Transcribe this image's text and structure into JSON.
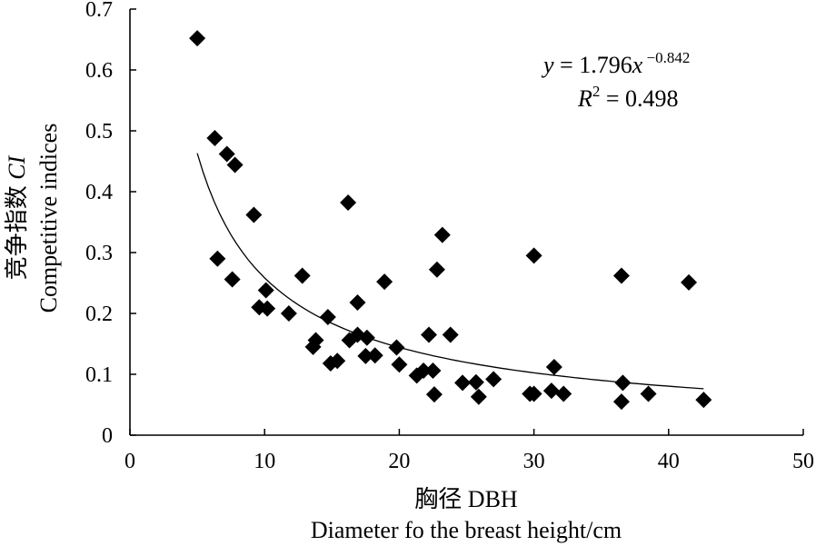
{
  "chart_data": {
    "type": "scatter",
    "title": "",
    "xlabel_line1": "胸径 DBH",
    "xlabel_line2": "Diameter fo the breast height/cm",
    "ylabel_line1_prefix": "竞争指数 ",
    "ylabel_line1_var": "CI",
    "ylabel_line2": "Competitive indices",
    "xlim": [
      0,
      50
    ],
    "ylim": [
      0,
      0.7
    ],
    "xticks": [
      "0",
      "10",
      "20",
      "30",
      "40",
      "50"
    ],
    "yticks": [
      "0",
      "0.1",
      "0.2",
      "0.3",
      "0.4",
      "0.5",
      "0.6",
      "0.7"
    ],
    "grid": false,
    "series": [
      {
        "marker": "diamond",
        "color": "#000000",
        "points": [
          [
            5.0,
            0.652
          ],
          [
            6.3,
            0.488
          ],
          [
            7.2,
            0.462
          ],
          [
            7.8,
            0.444
          ],
          [
            9.2,
            0.362
          ],
          [
            6.5,
            0.29
          ],
          [
            7.6,
            0.256
          ],
          [
            9.6,
            0.21
          ],
          [
            10.1,
            0.238
          ],
          [
            10.2,
            0.208
          ],
          [
            11.8,
            0.2
          ],
          [
            12.8,
            0.262
          ],
          [
            13.6,
            0.145
          ],
          [
            13.8,
            0.156
          ],
          [
            14.7,
            0.194
          ],
          [
            14.9,
            0.118
          ],
          [
            15.4,
            0.122
          ],
          [
            16.2,
            0.382
          ],
          [
            16.3,
            0.156
          ],
          [
            16.9,
            0.165
          ],
          [
            16.9,
            0.218
          ],
          [
            17.5,
            0.13
          ],
          [
            17.6,
            0.16
          ],
          [
            18.2,
            0.131
          ],
          [
            18.9,
            0.252
          ],
          [
            19.8,
            0.144
          ],
          [
            20.0,
            0.116
          ],
          [
            21.3,
            0.098
          ],
          [
            21.8,
            0.106
          ],
          [
            22.2,
            0.165
          ],
          [
            22.5,
            0.106
          ],
          [
            22.6,
            0.067
          ],
          [
            22.8,
            0.272
          ],
          [
            23.2,
            0.329
          ],
          [
            23.8,
            0.165
          ],
          [
            24.7,
            0.086
          ],
          [
            25.7,
            0.087
          ],
          [
            25.9,
            0.063
          ],
          [
            27.0,
            0.092
          ],
          [
            29.7,
            0.068
          ],
          [
            30.0,
            0.295
          ],
          [
            30.0,
            0.068
          ],
          [
            31.3,
            0.073
          ],
          [
            31.5,
            0.112
          ],
          [
            32.2,
            0.068
          ],
          [
            36.5,
            0.262
          ],
          [
            36.6,
            0.086
          ],
          [
            36.5,
            0.055
          ],
          [
            38.5,
            0.068
          ],
          [
            41.5,
            0.251
          ],
          [
            42.6,
            0.058
          ]
        ]
      }
    ],
    "fit": {
      "type": "power",
      "a": 1.796,
      "b": -0.842,
      "x_range": [
        5.0,
        42.6
      ],
      "equation": {
        "lhs": "y",
        "eq": " = 1.796",
        "var": "x",
        "exp": " −0.842"
      },
      "r2": {
        "sym": "R",
        "sup": "2",
        "val": " = 0.498"
      }
    }
  }
}
